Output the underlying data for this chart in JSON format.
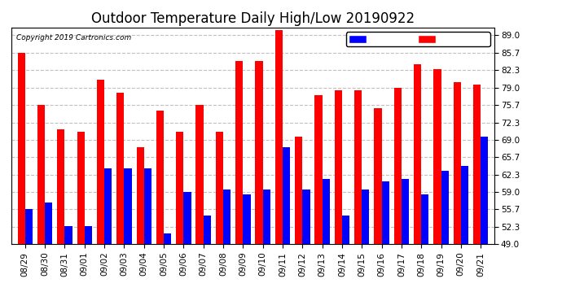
{
  "title": "Outdoor Temperature Daily High/Low 20190922",
  "copyright": "Copyright 2019 Cartronics.com",
  "categories": [
    "08/29",
    "08/30",
    "08/31",
    "09/01",
    "09/02",
    "09/03",
    "09/04",
    "09/05",
    "09/06",
    "09/07",
    "09/08",
    "09/09",
    "09/10",
    "09/11",
    "09/12",
    "09/13",
    "09/14",
    "09/15",
    "09/16",
    "09/17",
    "09/18",
    "09/19",
    "09/20",
    "09/21"
  ],
  "high": [
    85.7,
    75.7,
    71.0,
    70.5,
    80.5,
    78.0,
    67.5,
    74.5,
    70.5,
    75.7,
    70.5,
    84.0,
    84.0,
    90.0,
    69.5,
    77.5,
    78.5,
    78.5,
    75.0,
    79.0,
    83.5,
    82.5,
    80.0,
    79.5
  ],
  "low": [
    55.7,
    57.0,
    52.5,
    52.5,
    63.5,
    63.5,
    63.5,
    51.0,
    59.0,
    54.5,
    59.5,
    58.5,
    59.5,
    67.5,
    59.5,
    61.5,
    54.5,
    59.5,
    61.0,
    61.5,
    58.5,
    63.0,
    64.0,
    69.5
  ],
  "ylim_min": 49.0,
  "ylim_max": 90.5,
  "yticks": [
    49.0,
    52.3,
    55.7,
    59.0,
    62.3,
    65.7,
    69.0,
    72.3,
    75.7,
    79.0,
    82.3,
    85.7,
    89.0
  ],
  "high_color": "#ff0000",
  "low_color": "#0000ff",
  "bg_color": "#ffffff",
  "grid_color": "#c0c0c0",
  "title_fontsize": 12,
  "tick_fontsize": 7.5,
  "bar_width": 0.38,
  "base": 49.0
}
